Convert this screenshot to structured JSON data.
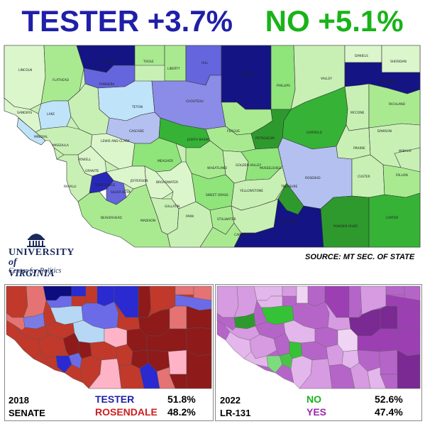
{
  "header": {
    "tester_label": "TESTER +3.7%",
    "no_label": "NO +5.1%",
    "tester_color": "#1f1fa8",
    "no_color": "#19b319"
  },
  "source_text": "SOURCE: MT SEC. OF STATE",
  "logo": {
    "line1": "UNIVERSITY",
    "line2": "of VIRGINIA",
    "line3": "Center for Politics"
  },
  "legend_left": {
    "year": "2018",
    "race": "SENATE",
    "cand1": "TESTER",
    "cand1_pct": "51.8%",
    "cand1_color": "#1f1fa8",
    "cand2": "ROSENDALE",
    "cand2_pct": "48.2%",
    "cand2_color": "#cc1f1f"
  },
  "legend_right": {
    "year": "2022",
    "race": "LR-131",
    "opt1": "NO",
    "opt1_pct": "52.6%",
    "opt1_color": "#19b319",
    "opt2": "YES",
    "opt2_pct": "47.4%",
    "opt2_color": "#9c27b0"
  },
  "counties": [
    "LINCOLN",
    "FLATHEAD",
    "GLACIER",
    "TOOLE",
    "LIBERTY",
    "HILL",
    "BLAINE",
    "PHILLIPS",
    "VALLEY",
    "DANIELS",
    "SHERIDAN",
    "ROOSEVELT",
    "SANDERS",
    "LAKE",
    "PONDERA",
    "TETON",
    "CHOUTEAU",
    "RICHLAND",
    "MCCONE",
    "GARFIELD",
    "PETROLEUM",
    "FERGUS",
    "JUDITH BASIN",
    "CASCADE",
    "MINERAL",
    "MISSOULA",
    "LEWIS AND CLARK",
    "POWELL",
    "MEAGHER",
    "WHEATLAND",
    "GOLDEN VALLEY",
    "MUSSELSHELL",
    "DAWSON",
    "PRAIRIE",
    "WIBAUX",
    "RAVALLI",
    "GRANITE",
    "DEER LODGE",
    "SILVER BOW",
    "JEFFERSON",
    "BROADWATER",
    "GALLATIN",
    "PARK",
    "SWEET GRASS",
    "STILLWATER",
    "YELLOWSTONE",
    "TREASURE",
    "ROSEBUD",
    "CUSTER",
    "FALLON",
    "BEAVERHEAD",
    "MADISON",
    "CARBON",
    "BIG HORN",
    "POWDER RIVER",
    "CARTER"
  ]
}
